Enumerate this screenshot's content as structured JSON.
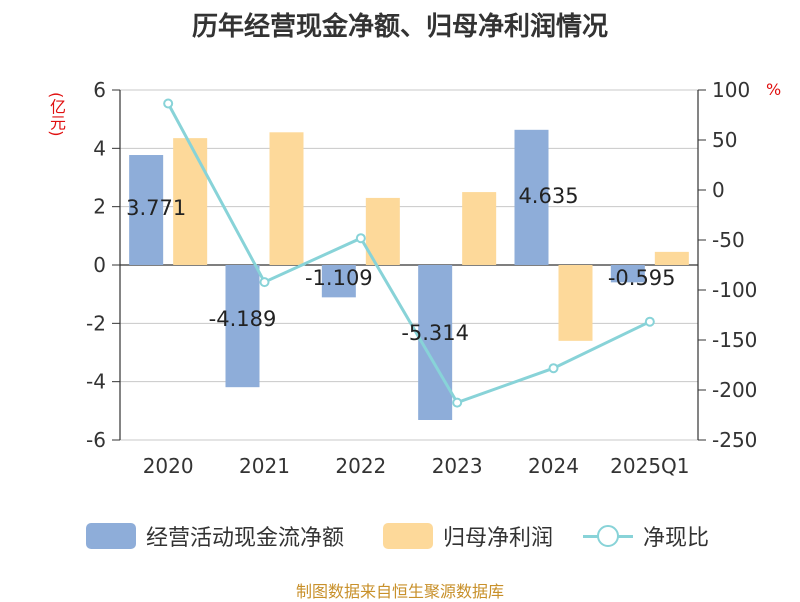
{
  "chart_data": {
    "type": "bar",
    "title": "历年经营现金净额、归母净利润情况",
    "categories": [
      "2020",
      "2021",
      "2022",
      "2023",
      "2024",
      "2025Q1"
    ],
    "ylabel_left": "(亿元)",
    "ylabel_right": "%",
    "ylim_left": [
      -6,
      6
    ],
    "yticks_left": [
      6,
      4,
      2,
      0,
      -2,
      -4,
      -6
    ],
    "ylim_right": [
      -250,
      100
    ],
    "yticks_right": [
      100,
      50,
      0,
      -50,
      -100,
      -150,
      -200,
      -250
    ],
    "grid": true,
    "legend_position": "bottom",
    "series": [
      {
        "name": "经营活动现金流净额",
        "type": "bar",
        "axis": "left",
        "color": "#8eadd9",
        "values": [
          3.771,
          -4.189,
          -1.109,
          -5.314,
          4.635,
          -0.595
        ],
        "data_labels": [
          "3.771",
          "-4.189",
          "-1.109",
          "-5.314",
          "4.635",
          "-0.595"
        ]
      },
      {
        "name": "归母净利润",
        "type": "bar",
        "axis": "left",
        "color": "#fdd99a",
        "values": [
          4.35,
          4.55,
          2.3,
          2.5,
          -2.6,
          0.45
        ]
      },
      {
        "name": "净现比",
        "type": "line",
        "axis": "right",
        "color": "#88d3d8",
        "values": [
          86.5,
          -92.1,
          -48.2,
          -212.6,
          -178.2,
          -131.7
        ]
      }
    ]
  },
  "source": "制图数据来自恒生聚源数据库"
}
